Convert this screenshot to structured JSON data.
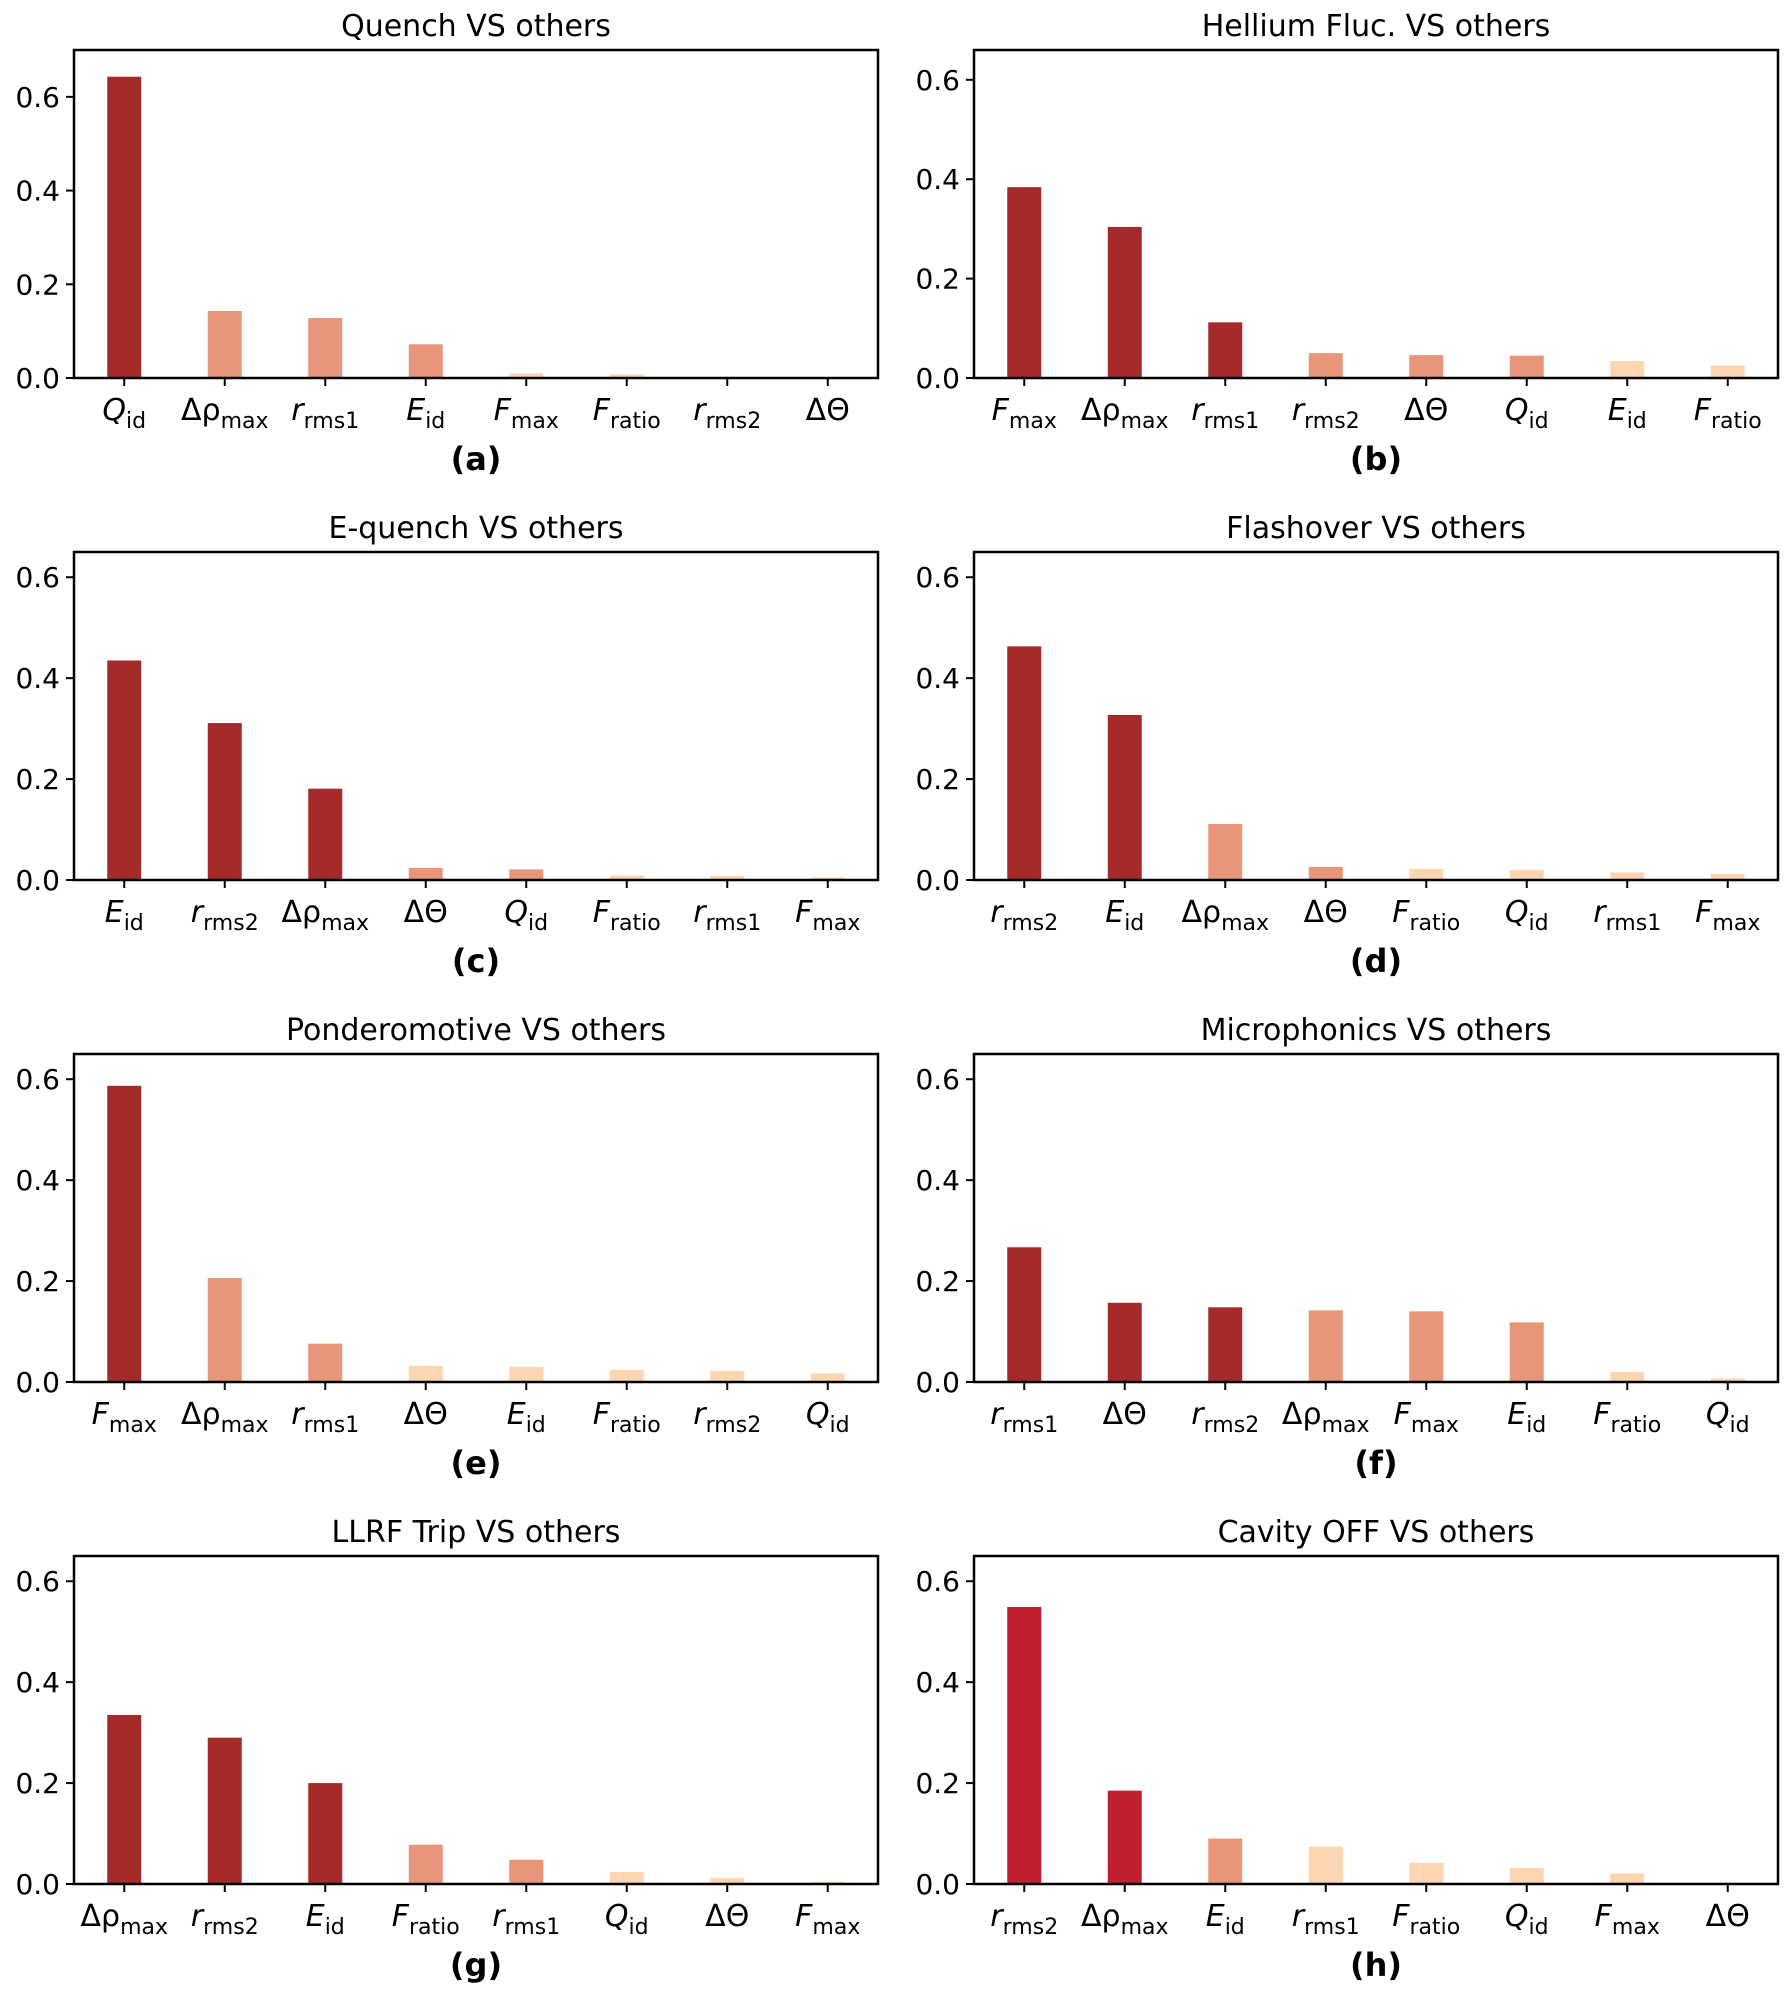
{
  "chart_data": [
    {
      "type": "bar",
      "title": "Quench VS others",
      "panel_label": "(a)",
      "categories": [
        {
          "base": "Q",
          "sub": "id",
          "italic": true
        },
        {
          "base": "Δρ",
          "sub": "max",
          "italic": false
        },
        {
          "base": "r",
          "sub": "rms1",
          "italic": true
        },
        {
          "base": "E",
          "sub": "id",
          "italic": true
        },
        {
          "base": "F",
          "sub": "max",
          "italic": true
        },
        {
          "base": "F",
          "sub": "ratio",
          "italic": true
        },
        {
          "base": "r",
          "sub": "rms2",
          "italic": true
        },
        {
          "base": "ΔΘ",
          "sub": "",
          "italic": false
        }
      ],
      "values": [
        0.643,
        0.143,
        0.128,
        0.072,
        0.01,
        0.008,
        0.002,
        0.001
      ],
      "colors": [
        "#a52a2a",
        "#e8967a",
        "#e8967a",
        "#e8967a",
        "#fdd5b0",
        "#fdd5b0",
        "#fdd5b0",
        "#fdd5b0"
      ],
      "ylim": [
        0,
        0.7
      ],
      "yticks": [
        "0.0",
        "0.2",
        "0.4",
        "0.6"
      ],
      "ytick_values": [
        0,
        0.2,
        0.4,
        0.6
      ],
      "xlabel": "",
      "ylabel": ""
    },
    {
      "type": "bar",
      "title": "Hellium Fluc. VS others",
      "panel_label": "(b)",
      "categories": [
        {
          "base": "F",
          "sub": "max",
          "italic": true
        },
        {
          "base": "Δρ",
          "sub": "max",
          "italic": false
        },
        {
          "base": "r",
          "sub": "rms1",
          "italic": true
        },
        {
          "base": "r",
          "sub": "rms2",
          "italic": true
        },
        {
          "base": "ΔΘ",
          "sub": "",
          "italic": false
        },
        {
          "base": "Q",
          "sub": "id",
          "italic": true
        },
        {
          "base": "E",
          "sub": "id",
          "italic": true
        },
        {
          "base": "F",
          "sub": "ratio",
          "italic": true
        }
      ],
      "values": [
        0.384,
        0.304,
        0.112,
        0.05,
        0.046,
        0.045,
        0.034,
        0.025
      ],
      "colors": [
        "#a52a2a",
        "#a52a2a",
        "#a52a2a",
        "#e8967a",
        "#e8967a",
        "#e8967a",
        "#fdd5b0",
        "#fdd5b0"
      ],
      "ylim": [
        0,
        0.66
      ],
      "yticks": [
        "0.0",
        "0.2",
        "0.4",
        "0.6"
      ],
      "ytick_values": [
        0,
        0.2,
        0.4,
        0.6
      ],
      "xlabel": "",
      "ylabel": ""
    },
    {
      "type": "bar",
      "title": "E-quench VS others",
      "panel_label": "(c)",
      "categories": [
        {
          "base": "E",
          "sub": "id",
          "italic": true
        },
        {
          "base": "r",
          "sub": "rms2",
          "italic": true
        },
        {
          "base": "Δρ",
          "sub": "max",
          "italic": false
        },
        {
          "base": "ΔΘ",
          "sub": "",
          "italic": false
        },
        {
          "base": "Q",
          "sub": "id",
          "italic": true
        },
        {
          "base": "F",
          "sub": "ratio",
          "italic": true
        },
        {
          "base": "r",
          "sub": "rms1",
          "italic": true
        },
        {
          "base": "F",
          "sub": "max",
          "italic": true
        }
      ],
      "values": [
        0.435,
        0.311,
        0.181,
        0.024,
        0.021,
        0.009,
        0.008,
        0.005
      ],
      "colors": [
        "#a52a2a",
        "#a52a2a",
        "#a52a2a",
        "#e8967a",
        "#e8967a",
        "#fdd5b0",
        "#fdd5b0",
        "#fdd5b0"
      ],
      "ylim": [
        0,
        0.65
      ],
      "yticks": [
        "0.0",
        "0.2",
        "0.4",
        "0.6"
      ],
      "ytick_values": [
        0,
        0.2,
        0.4,
        0.6
      ],
      "xlabel": "",
      "ylabel": ""
    },
    {
      "type": "bar",
      "title": "Flashover VS others",
      "panel_label": "(d)",
      "categories": [
        {
          "base": "r",
          "sub": "rms2",
          "italic": true
        },
        {
          "base": "E",
          "sub": "id",
          "italic": true
        },
        {
          "base": "Δρ",
          "sub": "max",
          "italic": false
        },
        {
          "base": "ΔΘ",
          "sub": "",
          "italic": false
        },
        {
          "base": "F",
          "sub": "ratio",
          "italic": true
        },
        {
          "base": "Q",
          "sub": "id",
          "italic": true
        },
        {
          "base": "r",
          "sub": "rms1",
          "italic": true
        },
        {
          "base": "F",
          "sub": "max",
          "italic": true
        }
      ],
      "values": [
        0.463,
        0.327,
        0.111,
        0.026,
        0.022,
        0.02,
        0.015,
        0.012
      ],
      "colors": [
        "#a52a2a",
        "#a52a2a",
        "#e8967a",
        "#e8967a",
        "#fdd5b0",
        "#fdd5b0",
        "#fdd5b0",
        "#fdd5b0"
      ],
      "ylim": [
        0,
        0.65
      ],
      "yticks": [
        "0.0",
        "0.2",
        "0.4",
        "0.6"
      ],
      "ytick_values": [
        0,
        0.2,
        0.4,
        0.6
      ],
      "xlabel": "",
      "ylabel": ""
    },
    {
      "type": "bar",
      "title": "Ponderomotive VS others",
      "panel_label": "(e)",
      "categories": [
        {
          "base": "F",
          "sub": "max",
          "italic": true
        },
        {
          "base": "Δρ",
          "sub": "max",
          "italic": false
        },
        {
          "base": "r",
          "sub": "rms1",
          "italic": true
        },
        {
          "base": "ΔΘ",
          "sub": "",
          "italic": false
        },
        {
          "base": "E",
          "sub": "id",
          "italic": true
        },
        {
          "base": "F",
          "sub": "ratio",
          "italic": true
        },
        {
          "base": "r",
          "sub": "rms2",
          "italic": true
        },
        {
          "base": "Q",
          "sub": "id",
          "italic": true
        }
      ],
      "values": [
        0.587,
        0.206,
        0.076,
        0.032,
        0.03,
        0.024,
        0.022,
        0.017
      ],
      "colors": [
        "#a52a2a",
        "#e8967a",
        "#e8967a",
        "#fdd5b0",
        "#fdd5b0",
        "#fdd5b0",
        "#fdd5b0",
        "#fdd5b0"
      ],
      "ylim": [
        0,
        0.65
      ],
      "yticks": [
        "0.0",
        "0.2",
        "0.4",
        "0.6"
      ],
      "ytick_values": [
        0,
        0.2,
        0.4,
        0.6
      ],
      "xlabel": "",
      "ylabel": ""
    },
    {
      "type": "bar",
      "title": "Microphonics VS others",
      "panel_label": "(f)",
      "categories": [
        {
          "base": "r",
          "sub": "rms1",
          "italic": true
        },
        {
          "base": "ΔΘ",
          "sub": "",
          "italic": false
        },
        {
          "base": "r",
          "sub": "rms2",
          "italic": true
        },
        {
          "base": "Δρ",
          "sub": "max",
          "italic": false
        },
        {
          "base": "F",
          "sub": "max",
          "italic": true
        },
        {
          "base": "E",
          "sub": "id",
          "italic": true
        },
        {
          "base": "F",
          "sub": "ratio",
          "italic": true
        },
        {
          "base": "Q",
          "sub": "id",
          "italic": true
        }
      ],
      "values": [
        0.267,
        0.157,
        0.148,
        0.142,
        0.14,
        0.118,
        0.02,
        0.007
      ],
      "colors": [
        "#a52a2a",
        "#a52a2a",
        "#a52a2a",
        "#e8967a",
        "#e8967a",
        "#e8967a",
        "#fdd5b0",
        "#fdd5b0"
      ],
      "ylim": [
        0,
        0.65
      ],
      "yticks": [
        "0.0",
        "0.2",
        "0.4",
        "0.6"
      ],
      "ytick_values": [
        0,
        0.2,
        0.4,
        0.6
      ],
      "xlabel": "",
      "ylabel": ""
    },
    {
      "type": "bar",
      "title": "LLRF Trip VS others",
      "panel_label": "(g)",
      "categories": [
        {
          "base": "Δρ",
          "sub": "max",
          "italic": false
        },
        {
          "base": "r",
          "sub": "rms2",
          "italic": true
        },
        {
          "base": "E",
          "sub": "id",
          "italic": true
        },
        {
          "base": "F",
          "sub": "ratio",
          "italic": true
        },
        {
          "base": "r",
          "sub": "rms1",
          "italic": true
        },
        {
          "base": "Q",
          "sub": "id",
          "italic": true
        },
        {
          "base": "ΔΘ",
          "sub": "",
          "italic": false
        },
        {
          "base": "F",
          "sub": "max",
          "italic": true
        }
      ],
      "values": [
        0.335,
        0.29,
        0.2,
        0.078,
        0.048,
        0.024,
        0.012,
        0.004
      ],
      "colors": [
        "#a52a2a",
        "#a52a2a",
        "#a52a2a",
        "#e8967a",
        "#e8967a",
        "#fdd5b0",
        "#fdd5b0",
        "#fdd5b0"
      ],
      "ylim": [
        0,
        0.65
      ],
      "yticks": [
        "0.0",
        "0.2",
        "0.4",
        "0.6"
      ],
      "ytick_values": [
        0,
        0.2,
        0.4,
        0.6
      ],
      "xlabel": "",
      "ylabel": ""
    },
    {
      "type": "bar",
      "title": "Cavity OFF VS others",
      "panel_label": "(h)",
      "categories": [
        {
          "base": "r",
          "sub": "rms2",
          "italic": true
        },
        {
          "base": "Δρ",
          "sub": "max",
          "italic": false
        },
        {
          "base": "E",
          "sub": "id",
          "italic": true
        },
        {
          "base": "r",
          "sub": "rms1",
          "italic": true
        },
        {
          "base": "F",
          "sub": "ratio",
          "italic": true
        },
        {
          "base": "Q",
          "sub": "id",
          "italic": true
        },
        {
          "base": "F",
          "sub": "max",
          "italic": true
        },
        {
          "base": "ΔΘ",
          "sub": "",
          "italic": false
        }
      ],
      "values": [
        0.549,
        0.185,
        0.09,
        0.074,
        0.042,
        0.032,
        0.021,
        0.001
      ],
      "colors": [
        "#c01f30",
        "#c01f30",
        "#e8967a",
        "#fdd5b0",
        "#fdd5b0",
        "#fdd5b0",
        "#fdd5b0",
        "#fdd5b0"
      ],
      "ylim": [
        0,
        0.65
      ],
      "yticks": [
        "0.0",
        "0.2",
        "0.4",
        "0.6"
      ],
      "ytick_values": [
        0,
        0.2,
        0.4,
        0.6
      ],
      "xlabel": "",
      "ylabel": ""
    }
  ]
}
